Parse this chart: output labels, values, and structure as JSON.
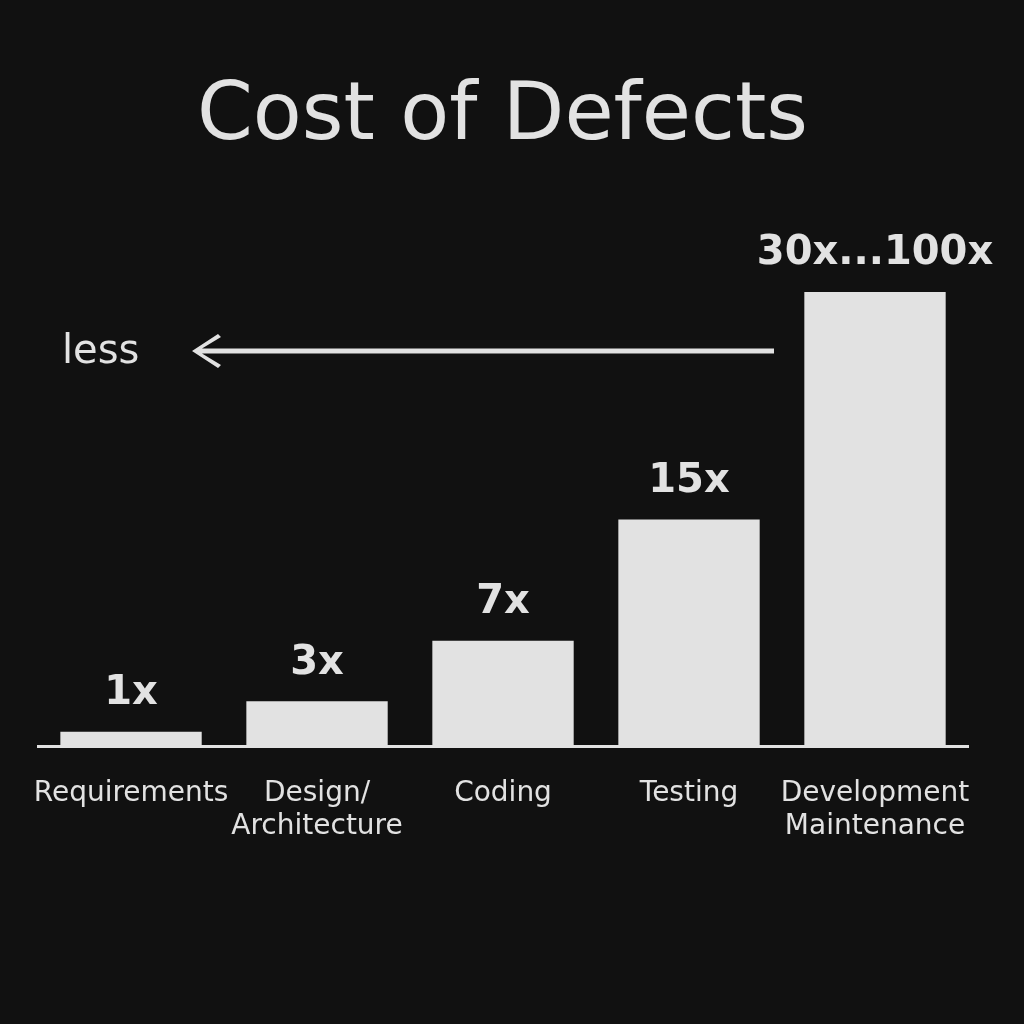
{
  "chart_data": {
    "type": "bar",
    "title": "Cost of Defects",
    "categories": [
      "Requirements",
      "Design/\nArchitecture",
      "Coding",
      "Testing",
      "Development\nMaintenance"
    ],
    "values": [
      1,
      3,
      7,
      15,
      30
    ],
    "value_labels": [
      "1x",
      "3x",
      "7x",
      "15x",
      "30x...100x"
    ],
    "tick_labels": "x",
    "color": "#e2e2e2",
    "legend": false,
    "annotations": [
      "less"
    ]
  }
}
